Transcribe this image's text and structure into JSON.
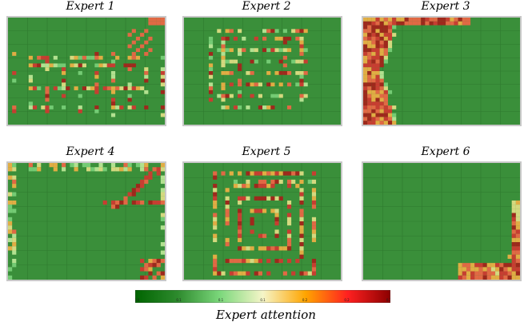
{
  "chart_data": [
    {
      "type": "heatmap",
      "title": "Expert 1",
      "pattern": "grid_sparse"
    },
    {
      "type": "heatmap",
      "title": "Expert 2",
      "pattern": "rings"
    },
    {
      "type": "heatmap",
      "title": "Expert 3",
      "pattern": "left_edge"
    },
    {
      "type": "heatmap",
      "title": "Expert 4",
      "pattern": "top_right_diagonal"
    },
    {
      "type": "heatmap",
      "title": "Expert 5",
      "pattern": "center_rings"
    },
    {
      "type": "heatmap",
      "title": "Expert 6",
      "pattern": "bottom_right_corner"
    }
  ],
  "colorbar": {
    "label": "Expert attention",
    "colors": [
      "#006400",
      "#2e8b2e",
      "#7cd87c",
      "#f5f5c8",
      "#ffa500",
      "#ff2020",
      "#8b0000"
    ],
    "ticks": [
      "0.0",
      "0.1",
      "0.1",
      "0.1",
      "0.2",
      "0.2",
      "0.3"
    ]
  },
  "base_color": "#3a8f3a"
}
